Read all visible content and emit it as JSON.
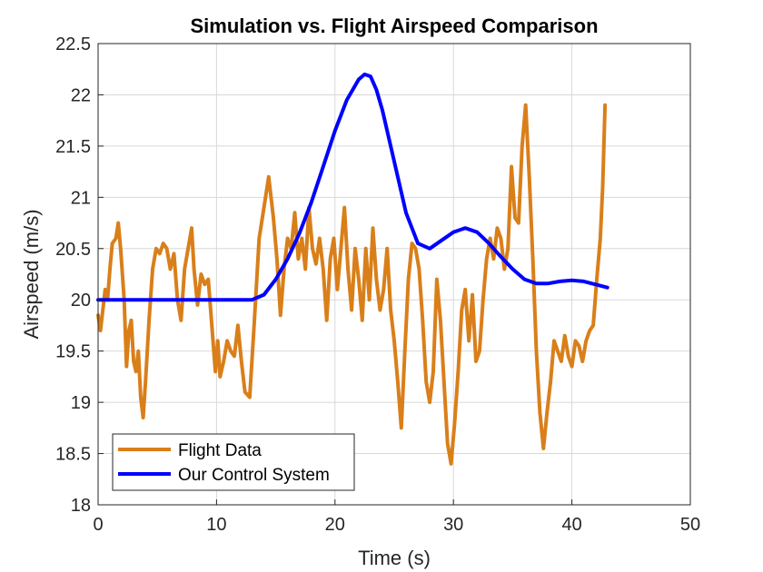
{
  "chart_data": {
    "type": "line",
    "title": "Simulation vs. Flight Airspeed Comparison",
    "xlabel": "Time (s)",
    "ylabel": "Airspeed (m/s)",
    "xlim": [
      0,
      50
    ],
    "ylim": [
      18,
      22.5
    ],
    "xticks": [
      0,
      10,
      20,
      30,
      40,
      50
    ],
    "yticks": [
      18,
      18.5,
      19,
      19.5,
      20,
      20.5,
      21,
      21.5,
      22,
      22.5
    ],
    "xtick_labels": [
      "0",
      "10",
      "20",
      "30",
      "40",
      "50"
    ],
    "ytick_labels": [
      "18",
      "18.5",
      "19",
      "19.5",
      "20",
      "20.5",
      "21",
      "21.5",
      "22",
      "22.5"
    ],
    "grid": true,
    "legend_position": "bottom-left",
    "series": [
      {
        "name": "Flight Data",
        "color": "#D97F1A",
        "x": [
          0,
          0.2,
          0.4,
          0.6,
          0.8,
          1.0,
          1.2,
          1.5,
          1.7,
          1.9,
          2.2,
          2.4,
          2.6,
          2.8,
          3.0,
          3.2,
          3.4,
          3.6,
          3.8,
          4.0,
          4.3,
          4.6,
          4.9,
          5.2,
          5.5,
          5.8,
          6.1,
          6.4,
          6.7,
          7.0,
          7.3,
          7.6,
          7.9,
          8.1,
          8.4,
          8.7,
          9.0,
          9.3,
          9.6,
          9.9,
          10.1,
          10.3,
          10.6,
          10.9,
          11.2,
          11.5,
          11.8,
          12.1,
          12.4,
          12.8,
          13.2,
          13.6,
          14.0,
          14.4,
          14.8,
          15.1,
          15.4,
          15.7,
          16.0,
          16.3,
          16.6,
          16.9,
          17.2,
          17.5,
          17.8,
          18.1,
          18.4,
          18.7,
          19.0,
          19.3,
          19.6,
          19.9,
          20.2,
          20.5,
          20.8,
          21.1,
          21.4,
          21.7,
          22.0,
          22.3,
          22.6,
          22.9,
          23.2,
          23.5,
          23.8,
          24.1,
          24.4,
          24.7,
          25.0,
          25.3,
          25.6,
          25.9,
          26.2,
          26.5,
          26.8,
          27.1,
          27.4,
          27.7,
          28.0,
          28.3,
          28.6,
          28.9,
          29.2,
          29.5,
          29.8,
          30.1,
          30.4,
          30.7,
          31.0,
          31.3,
          31.6,
          31.9,
          32.2,
          32.5,
          32.8,
          33.1,
          33.4,
          33.7,
          34.0,
          34.3,
          34.6,
          34.9,
          35.2,
          35.5,
          35.8,
          36.1,
          36.4,
          36.7,
          37.0,
          37.3,
          37.6,
          37.9,
          38.2,
          38.5,
          38.8,
          39.1,
          39.4,
          39.7,
          40.0,
          40.3,
          40.6,
          40.9,
          41.2,
          41.5,
          41.8,
          42.1,
          42.4,
          42.6,
          42.8
        ],
        "y": [
          19.85,
          19.7,
          19.9,
          20.1,
          20.0,
          20.3,
          20.55,
          20.6,
          20.75,
          20.5,
          20.0,
          19.35,
          19.7,
          19.8,
          19.4,
          19.3,
          19.5,
          19.05,
          18.85,
          19.2,
          19.8,
          20.3,
          20.5,
          20.45,
          20.55,
          20.5,
          20.3,
          20.45,
          20.0,
          19.8,
          20.3,
          20.5,
          20.7,
          20.3,
          19.95,
          20.25,
          20.15,
          20.2,
          19.75,
          19.3,
          19.6,
          19.25,
          19.4,
          19.6,
          19.5,
          19.45,
          19.75,
          19.4,
          19.1,
          19.05,
          19.8,
          20.6,
          20.9,
          21.2,
          20.8,
          20.4,
          19.85,
          20.3,
          20.6,
          20.5,
          20.85,
          20.4,
          20.6,
          20.3,
          20.9,
          20.5,
          20.35,
          20.6,
          20.3,
          19.8,
          20.4,
          20.6,
          20.1,
          20.5,
          20.9,
          20.3,
          19.9,
          20.5,
          20.2,
          19.8,
          20.5,
          20.0,
          20.7,
          20.2,
          19.9,
          20.1,
          20.5,
          19.9,
          19.6,
          19.2,
          18.75,
          19.5,
          20.2,
          20.55,
          20.5,
          20.3,
          19.8,
          19.2,
          19.0,
          19.3,
          20.2,
          19.8,
          19.2,
          18.6,
          18.4,
          18.8,
          19.3,
          19.9,
          20.1,
          19.6,
          20.05,
          19.4,
          19.5,
          20.0,
          20.4,
          20.6,
          20.4,
          20.7,
          20.6,
          20.3,
          20.5,
          21.3,
          20.8,
          20.75,
          21.5,
          21.9,
          21.2,
          20.4,
          19.5,
          18.9,
          18.55,
          18.9,
          19.2,
          19.6,
          19.5,
          19.4,
          19.65,
          19.45,
          19.35,
          19.6,
          19.55,
          19.4,
          19.6,
          19.7,
          19.75,
          20.2,
          20.6,
          21.1,
          21.9
        ]
      },
      {
        "name": "Our Control System",
        "color": "#0000FF",
        "x": [
          0,
          5,
          10,
          12,
          13,
          14,
          15,
          16,
          17,
          18,
          19,
          20,
          21,
          22,
          22.5,
          23,
          23.5,
          24,
          25,
          26,
          27,
          28,
          29,
          30,
          31,
          32,
          33,
          34,
          35,
          36,
          37,
          38,
          39,
          40,
          41,
          42,
          43
        ],
        "y": [
          20.0,
          20.0,
          20.0,
          20.0,
          20.0,
          20.05,
          20.2,
          20.4,
          20.65,
          20.95,
          21.3,
          21.65,
          21.95,
          22.15,
          22.2,
          22.18,
          22.05,
          21.85,
          21.35,
          20.85,
          20.55,
          20.5,
          20.58,
          20.66,
          20.7,
          20.66,
          20.55,
          20.42,
          20.3,
          20.2,
          20.16,
          20.16,
          20.18,
          20.19,
          20.18,
          20.15,
          20.12
        ]
      }
    ]
  }
}
